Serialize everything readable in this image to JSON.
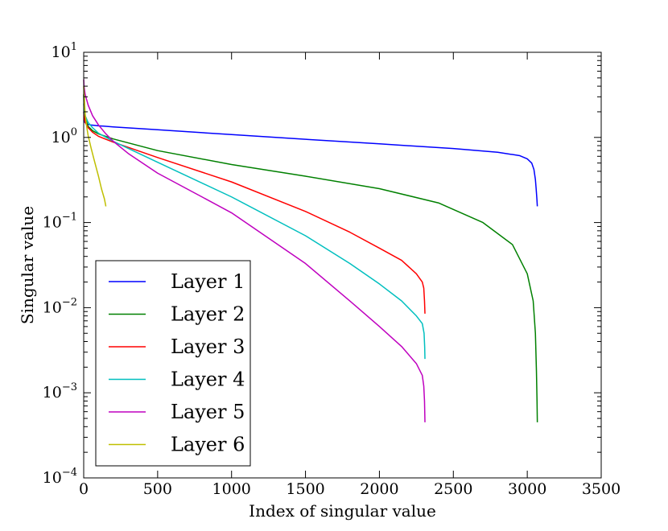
{
  "chart_data": {
    "type": "line",
    "title": "",
    "xlabel": "Index of singular value",
    "ylabel": "Singular value",
    "xlim": [
      0,
      3500
    ],
    "ylim": [
      0.0001,
      10
    ],
    "yscale": "log",
    "grid": false,
    "legend_position": "bottom-left",
    "x_ticks": [
      {
        "value": 0,
        "label": "0"
      },
      {
        "value": 500,
        "label": "500"
      },
      {
        "value": 1000,
        "label": "1000"
      },
      {
        "value": 1500,
        "label": "1500"
      },
      {
        "value": 2000,
        "label": "2000"
      },
      {
        "value": 2500,
        "label": "2500"
      },
      {
        "value": 3000,
        "label": "3000"
      },
      {
        "value": 3500,
        "label": "3500"
      }
    ],
    "y_ticks": [
      {
        "value": 0.0001,
        "base": "10",
        "exp": "−4"
      },
      {
        "value": 0.001,
        "base": "10",
        "exp": "−3"
      },
      {
        "value": 0.01,
        "base": "10",
        "exp": "−2"
      },
      {
        "value": 0.1,
        "base": "10",
        "exp": "−1"
      },
      {
        "value": 1,
        "base": "10",
        "exp": "0"
      },
      {
        "value": 10,
        "base": "10",
        "exp": "1"
      }
    ],
    "series": [
      {
        "name": "Layer 1",
        "color": "#0000ff",
        "x": [
          0,
          5,
          20,
          50,
          100,
          200,
          500,
          1000,
          1500,
          2000,
          2500,
          2800,
          2950,
          3000,
          3030,
          3045,
          3055,
          3060,
          3065,
          3068
        ],
        "y": [
          1.6,
          1.52,
          1.44,
          1.4,
          1.37,
          1.33,
          1.23,
          1.08,
          0.95,
          0.84,
          0.74,
          0.67,
          0.61,
          0.56,
          0.5,
          0.42,
          0.32,
          0.25,
          0.19,
          0.155
        ]
      },
      {
        "name": "Layer 2",
        "color": "#008000",
        "x": [
          0,
          2,
          10,
          30,
          60,
          100,
          200,
          500,
          1000,
          1500,
          2000,
          2400,
          2700,
          2900,
          3000,
          3040,
          3055,
          3062,
          3066,
          3068
        ],
        "y": [
          3.2,
          2.3,
          1.7,
          1.35,
          1.2,
          1.1,
          0.96,
          0.7,
          0.48,
          0.35,
          0.25,
          0.17,
          0.1,
          0.055,
          0.025,
          0.012,
          0.005,
          0.0018,
          0.0008,
          0.00045
        ]
      },
      {
        "name": "Layer 3",
        "color": "#ff0000",
        "x": [
          0,
          2,
          10,
          30,
          60,
          100,
          200,
          500,
          1000,
          1500,
          1800,
          2000,
          2150,
          2250,
          2290,
          2300,
          2305,
          2308
        ],
        "y": [
          2.0,
          1.8,
          1.5,
          1.3,
          1.15,
          1.03,
          0.88,
          0.58,
          0.3,
          0.135,
          0.077,
          0.05,
          0.036,
          0.025,
          0.02,
          0.017,
          0.012,
          0.0085
        ]
      },
      {
        "name": "Layer 4",
        "color": "#00bfbf",
        "x": [
          0,
          2,
          10,
          30,
          60,
          100,
          200,
          500,
          1000,
          1500,
          1800,
          2000,
          2150,
          2250,
          2290,
          2302,
          2306,
          2308
        ],
        "y": [
          2.5,
          2.2,
          1.8,
          1.5,
          1.3,
          1.12,
          0.9,
          0.51,
          0.2,
          0.07,
          0.033,
          0.019,
          0.012,
          0.008,
          0.0065,
          0.005,
          0.0035,
          0.0025
        ]
      },
      {
        "name": "Layer 5",
        "color": "#bf00bf",
        "x": [
          0,
          2,
          10,
          30,
          60,
          100,
          150,
          200,
          300,
          500,
          800,
          1000,
          1500,
          1800,
          2000,
          2150,
          2250,
          2290,
          2300,
          2305,
          2308
        ],
        "y": [
          4.8,
          4.0,
          3.2,
          2.4,
          1.8,
          1.4,
          1.1,
          0.9,
          0.65,
          0.38,
          0.2,
          0.13,
          0.033,
          0.012,
          0.006,
          0.0035,
          0.0022,
          0.0016,
          0.0012,
          0.0008,
          0.00045
        ]
      },
      {
        "name": "Layer 6",
        "color": "#bfbf00",
        "x": [
          0,
          5,
          10,
          20,
          30,
          50,
          70,
          100,
          120,
          140,
          150
        ],
        "y": [
          4.0,
          2.7,
          1.9,
          1.35,
          1.05,
          0.75,
          0.55,
          0.35,
          0.25,
          0.19,
          0.155
        ]
      }
    ]
  }
}
